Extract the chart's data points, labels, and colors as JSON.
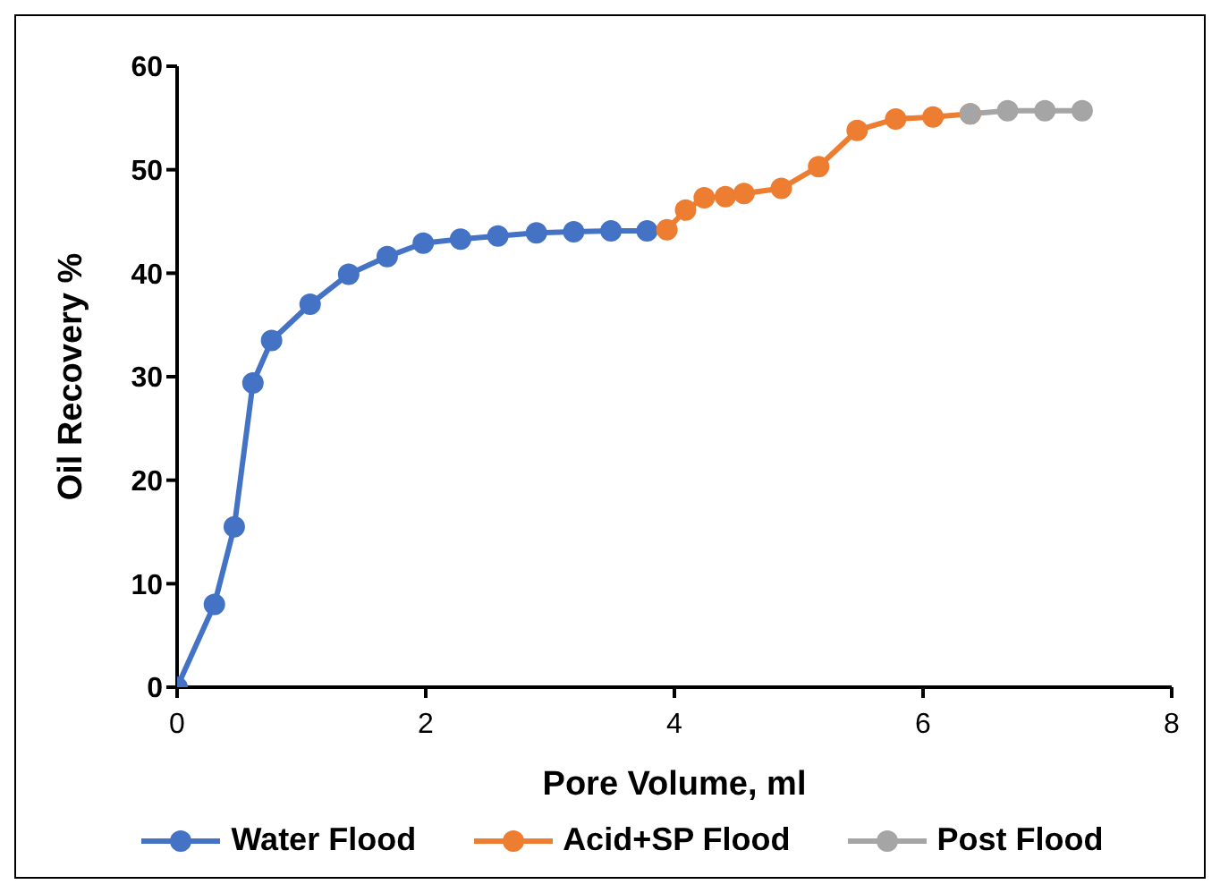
{
  "chart_data": {
    "type": "line",
    "xlabel": "Pore Volume, ml",
    "ylabel": "Oil Recovery %",
    "xlim": [
      0,
      8
    ],
    "xticks": [
      0,
      2,
      4,
      6,
      8
    ],
    "ylim": [
      0,
      60
    ],
    "yticks": [
      0,
      10,
      20,
      30,
      40,
      50,
      60
    ],
    "grid": false,
    "legend": "bottom",
    "marker": "circle",
    "line_style": "solid",
    "series": [
      {
        "name": "Water Flood",
        "color": "#4472c4",
        "x": [
          0,
          0.3,
          0.46,
          0.61,
          0.76,
          1.07,
          1.38,
          1.69,
          1.98,
          2.28,
          2.58,
          2.89,
          3.19,
          3.49,
          3.78
        ],
        "values": [
          0,
          8.0,
          15.5,
          29.4,
          33.5,
          37.0,
          39.9,
          41.6,
          42.9,
          43.3,
          43.6,
          43.9,
          44.0,
          44.1,
          44.1
        ]
      },
      {
        "name": "Acid+SP Flood",
        "color": "#ed7d31",
        "x": [
          3.94,
          4.09,
          4.24,
          4.41,
          4.56,
          4.86,
          5.16,
          5.47,
          5.78,
          6.08,
          6.38
        ],
        "values": [
          44.2,
          46.1,
          47.3,
          47.4,
          47.7,
          48.2,
          50.3,
          53.8,
          54.9,
          55.1,
          55.4
        ]
      },
      {
        "name": "Post Flood",
        "color": "#a5a5a5",
        "x": [
          6.38,
          6.68,
          6.98,
          7.28
        ],
        "values": [
          55.4,
          55.7,
          55.7,
          55.7
        ]
      }
    ]
  }
}
